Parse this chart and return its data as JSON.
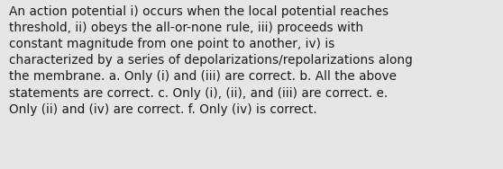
{
  "lines": [
    "An action potential i) occurs when the local potential reaches",
    "threshold, ii) obeys the all-or-none rule, iii) proceeds with",
    "constant magnitude from one point to another, iv) is",
    "characterized by a series of depolarizations/repolarizations along",
    "the membrane. a. Only (i) and (iii) are correct. b. All the above",
    "statements are correct. c. Only (i), (ii), and (iii) are correct. e.",
    "Only (ii) and (iv) are correct. f. Only (iv) is correct."
  ],
  "background_color": "#e6e6e6",
  "text_color": "#1a1a1a",
  "font_size": 9.8,
  "fig_width": 5.58,
  "fig_height": 1.88
}
